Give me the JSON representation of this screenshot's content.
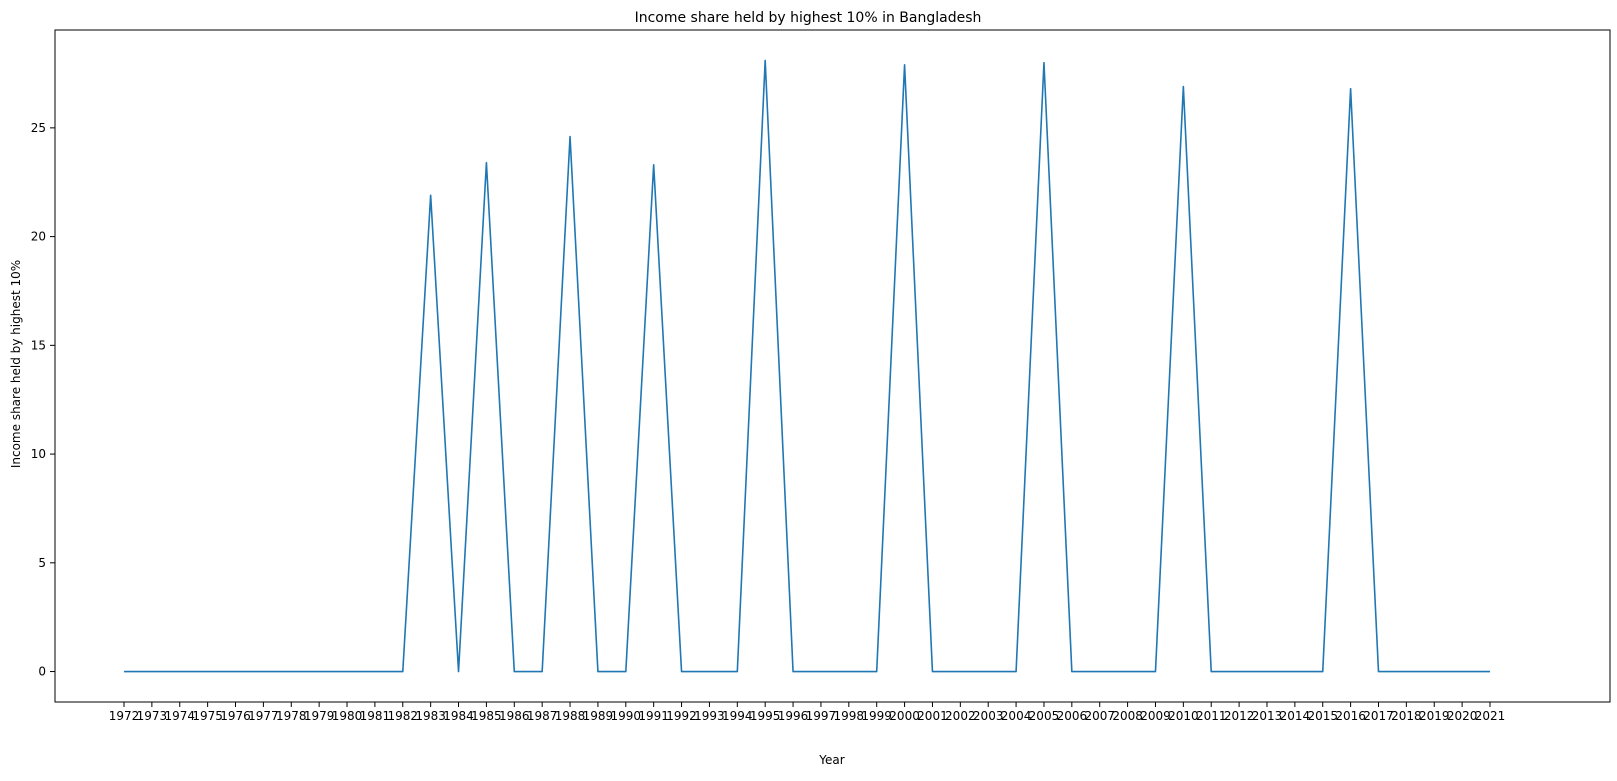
{
  "chart_data": {
    "type": "line",
    "title": "Income share held by highest 10% in Bangladesh",
    "xlabel": "Year",
    "ylabel": "Income share held by highest 10%",
    "x": [
      "1972",
      "1973",
      "1974",
      "1975",
      "1976",
      "1977",
      "1978",
      "1979",
      "1980",
      "1981",
      "1982",
      "1983",
      "1984",
      "1985",
      "1986",
      "1987",
      "1988",
      "1989",
      "1990",
      "1991",
      "1992",
      "1993",
      "1994",
      "1995",
      "1996",
      "1997",
      "1998",
      "1999",
      "2000",
      "2001",
      "2002",
      "2003",
      "2004",
      "2005",
      "2006",
      "2007",
      "2008",
      "2009",
      "2010",
      "2011",
      "2012",
      "2013",
      "2014",
      "2015",
      "2016",
      "2017",
      "2018",
      "2019",
      "2020",
      "2021"
    ],
    "series": [
      {
        "values": [
          0,
          0,
          0,
          0,
          0,
          0,
          0,
          0,
          0,
          0,
          0,
          21.9,
          0,
          23.4,
          0,
          0,
          24.6,
          0,
          0,
          23.3,
          0,
          0,
          0,
          28.1,
          0,
          0,
          0,
          0,
          27.9,
          0,
          0,
          0,
          0,
          28.0,
          0,
          0,
          0,
          0,
          26.9,
          0,
          0,
          0,
          0,
          0,
          26.8,
          0,
          0,
          0,
          0,
          0
        ],
        "color": "#1f77b4"
      }
    ],
    "yticks": [
      0,
      5,
      10,
      15,
      20,
      25
    ],
    "ylim": [
      -1.4,
      29.5
    ],
    "grid": false,
    "legend": "none"
  }
}
